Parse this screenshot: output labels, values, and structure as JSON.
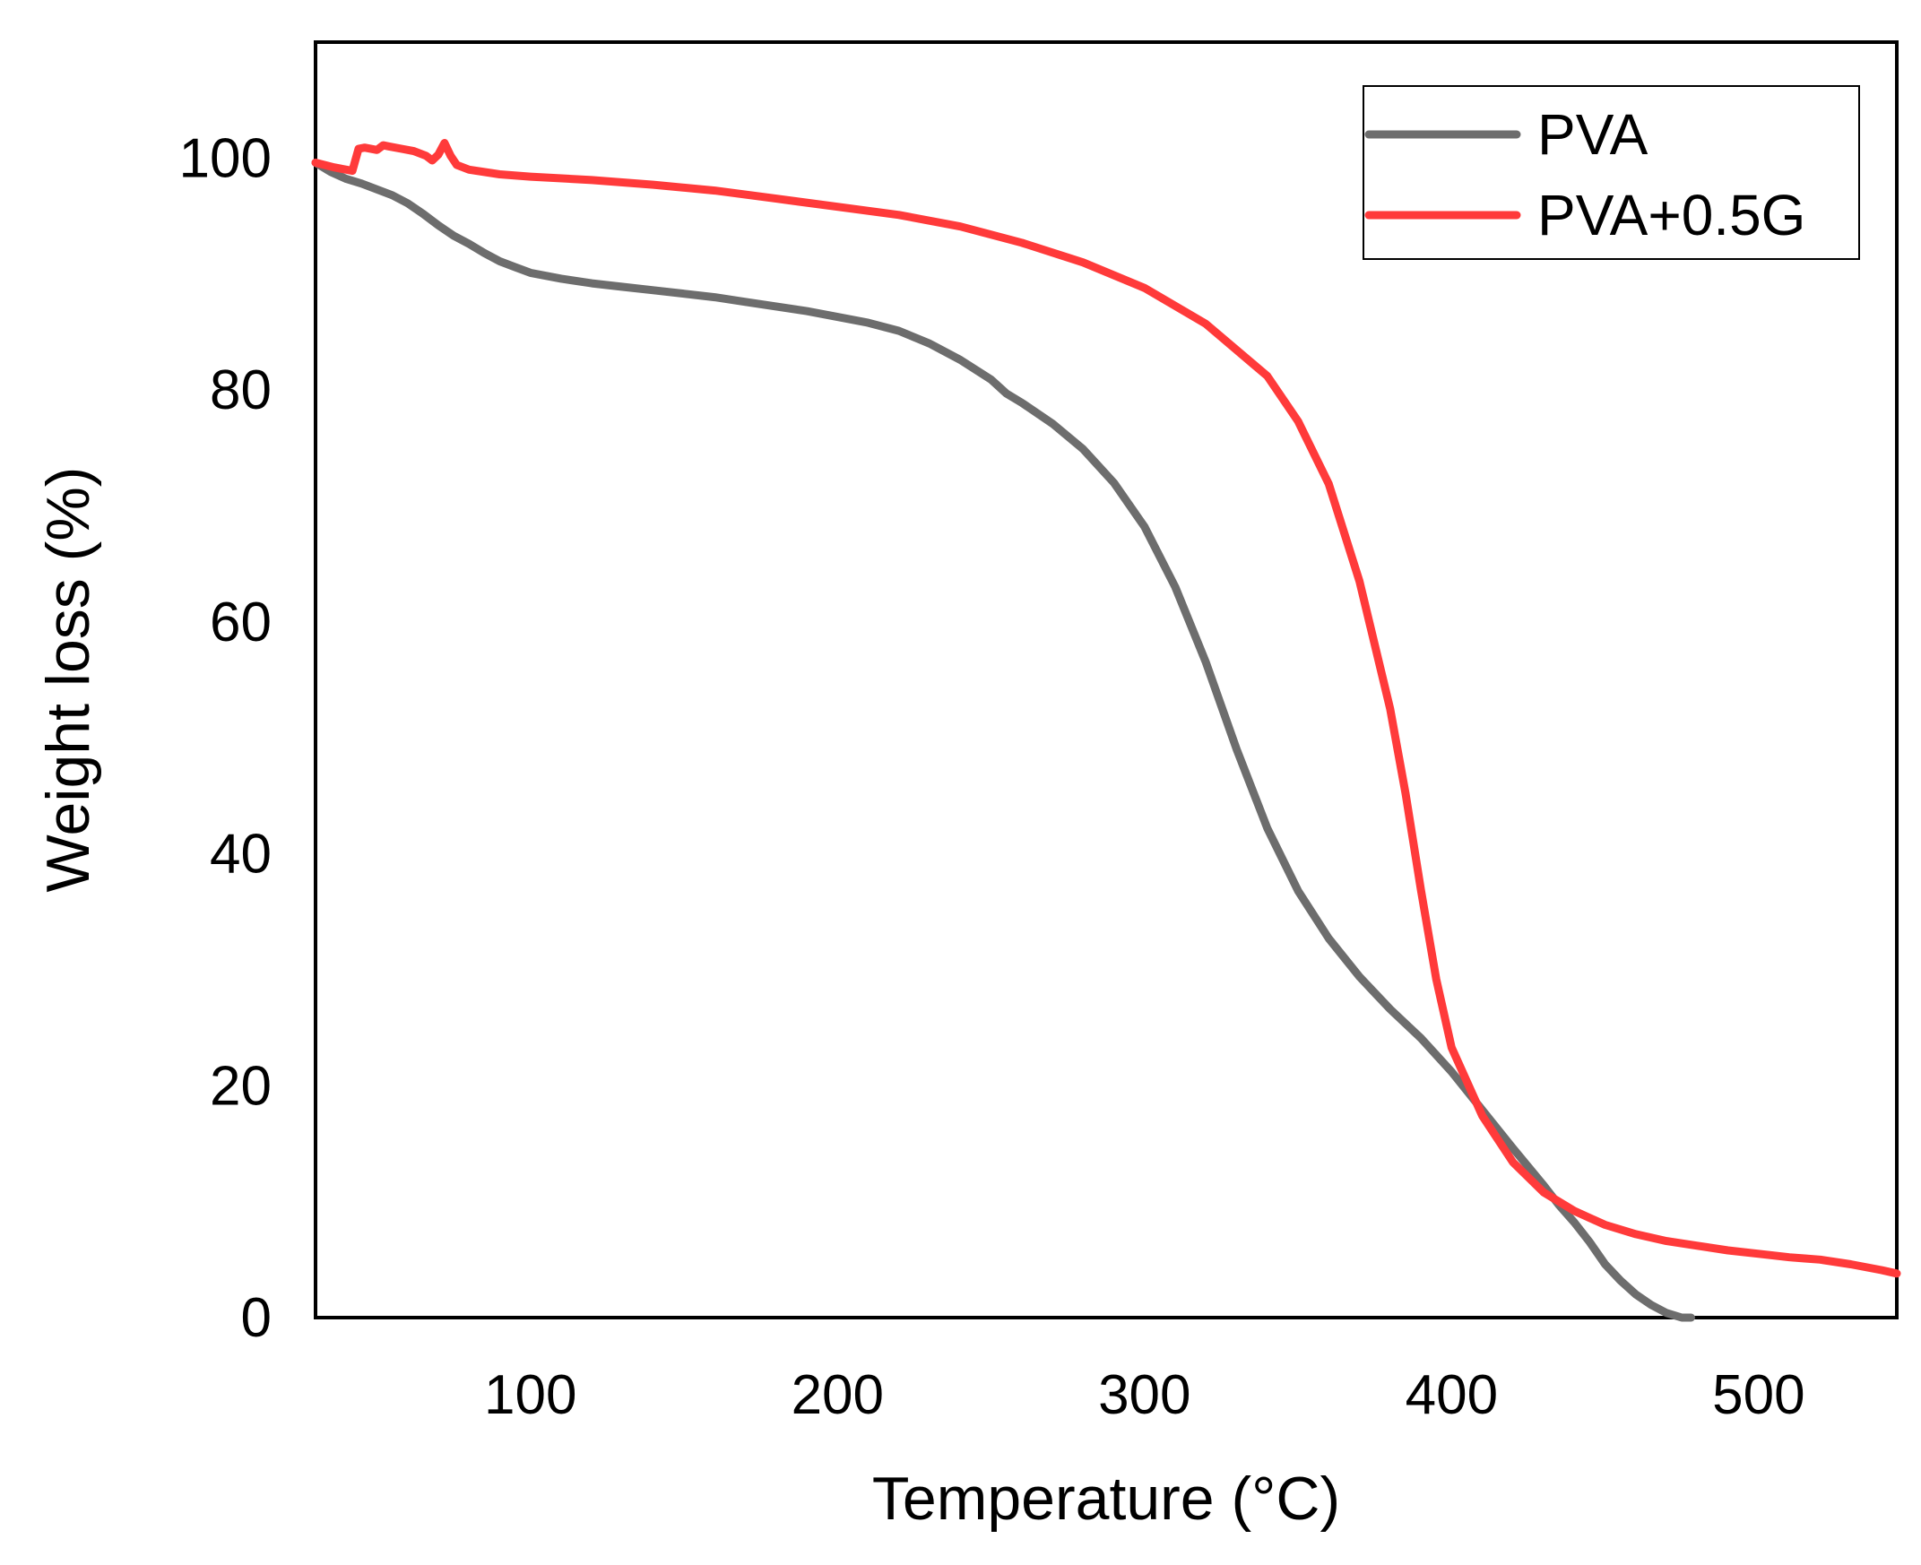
{
  "chart_data": {
    "type": "line",
    "title": "",
    "xlabel": "Temperature (°C)",
    "ylabel": "Weight loss (%)",
    "xlim": [
      30,
      545
    ],
    "ylim": [
      0,
      110
    ],
    "xticks": [
      100,
      200,
      300,
      400,
      500
    ],
    "yticks": [
      0,
      20,
      40,
      60,
      80,
      100
    ],
    "grid": false,
    "legend_position": "top-right",
    "series": [
      {
        "name": "PVA",
        "color": "#6d6d6d",
        "x": [
          30,
          35,
          40,
          45,
          50,
          55,
          60,
          65,
          70,
          75,
          80,
          85,
          90,
          95,
          100,
          110,
          120,
          130,
          140,
          150,
          160,
          170,
          180,
          190,
          200,
          210,
          220,
          230,
          240,
          250,
          255,
          260,
          270,
          280,
          290,
          300,
          310,
          320,
          330,
          340,
          350,
          360,
          370,
          380,
          390,
          400,
          410,
          420,
          430,
          435,
          440,
          445,
          450,
          455,
          460,
          465,
          470,
          475,
          478
        ],
        "y": [
          99.6,
          98.8,
          98.2,
          97.8,
          97.3,
          96.8,
          96.1,
          95.2,
          94.2,
          93.3,
          92.6,
          91.8,
          91.1,
          90.6,
          90.1,
          89.6,
          89.2,
          88.9,
          88.6,
          88.3,
          88.0,
          87.6,
          87.2,
          86.8,
          86.3,
          85.8,
          85.1,
          84.0,
          82.6,
          80.9,
          79.7,
          78.9,
          77.1,
          74.9,
          72.0,
          68.2,
          63.0,
          56.5,
          49.0,
          42.2,
          36.8,
          32.7,
          29.4,
          26.6,
          24.1,
          21.2,
          17.9,
          14.6,
          11.4,
          9.7,
          8.2,
          6.5,
          4.6,
          3.2,
          2.0,
          1.1,
          0.4,
          0.0,
          0.0
        ]
      },
      {
        "name": "PVA+0.5G",
        "color": "#ff3a3a",
        "x": [
          30,
          36,
          42,
          44,
          46,
          50,
          52,
          54,
          58,
          62,
          66,
          68,
          70,
          72,
          74,
          76,
          80,
          90,
          100,
          120,
          140,
          160,
          180,
          200,
          220,
          240,
          260,
          280,
          300,
          320,
          340,
          350,
          360,
          370,
          380,
          385,
          390,
          395,
          400,
          410,
          420,
          430,
          440,
          450,
          460,
          470,
          480,
          490,
          500,
          510,
          515,
          520,
          530,
          540,
          545
        ],
        "y": [
          99.6,
          99.2,
          98.9,
          100.8,
          100.9,
          100.7,
          101.1,
          101.0,
          100.8,
          100.6,
          100.2,
          99.8,
          100.3,
          101.3,
          100.2,
          99.4,
          99.0,
          98.6,
          98.4,
          98.1,
          97.7,
          97.2,
          96.5,
          95.8,
          95.1,
          94.1,
          92.7,
          91.0,
          88.8,
          85.7,
          81.2,
          77.3,
          71.9,
          63.5,
          52.5,
          45.2,
          36.9,
          29.2,
          23.3,
          17.4,
          13.4,
          10.8,
          9.2,
          8.0,
          7.2,
          6.6,
          6.2,
          5.8,
          5.5,
          5.2,
          5.1,
          5.0,
          4.6,
          4.1,
          3.8
        ]
      }
    ]
  }
}
